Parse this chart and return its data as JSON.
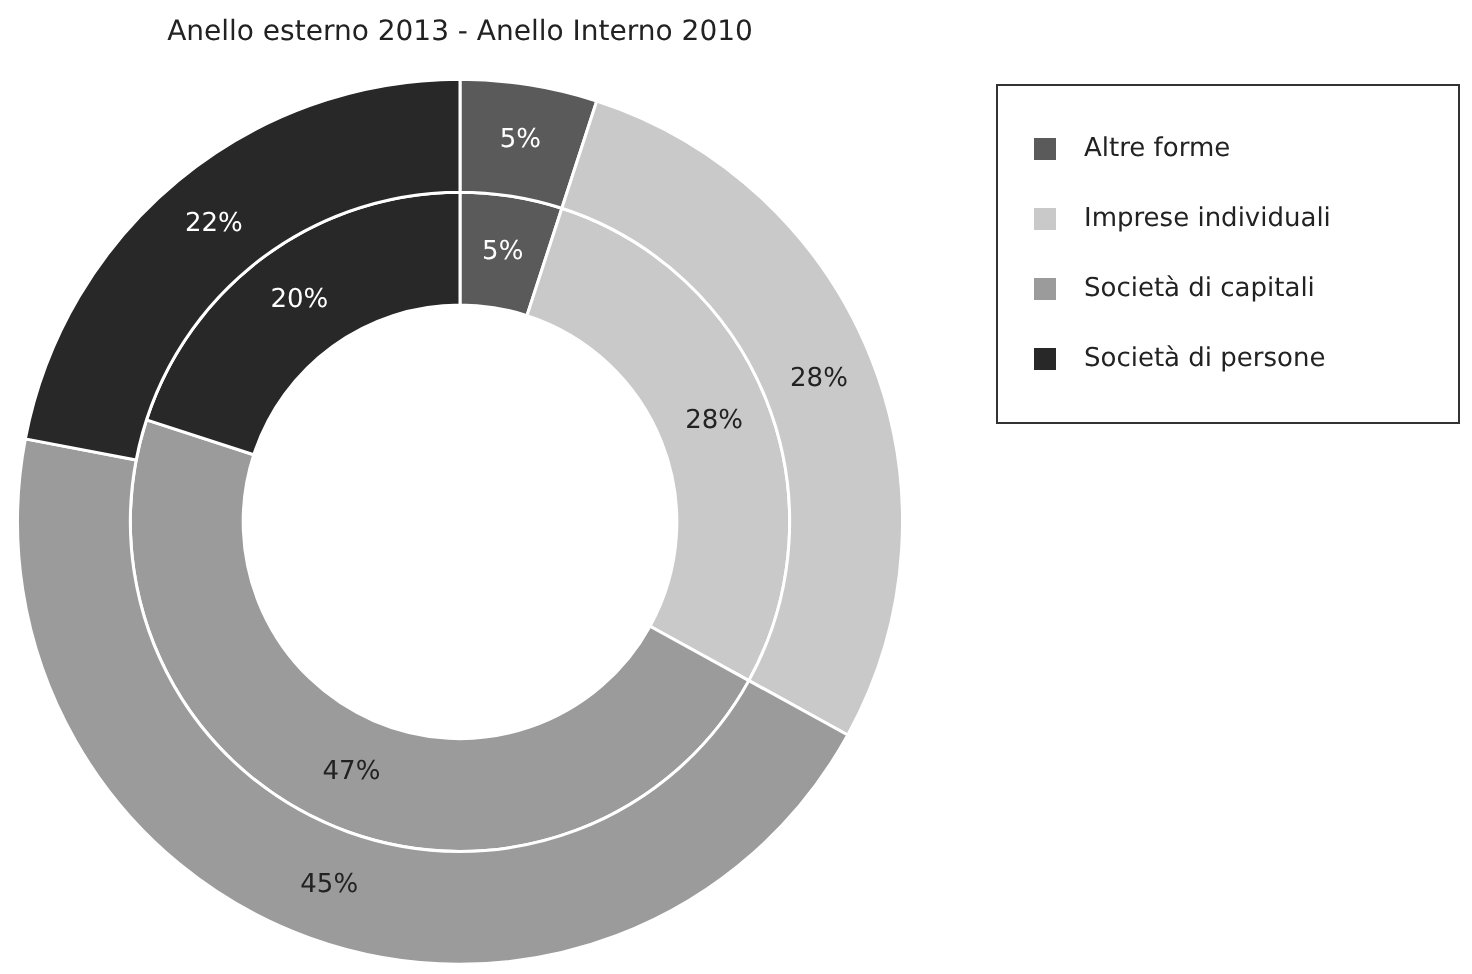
{
  "chart_data": {
    "type": "donut",
    "title": "Anello esterno 2013 - Anello Interno 2010",
    "categories": [
      "Altre forme",
      "Imprese individuali",
      "Società di capitali",
      "Società di persone"
    ],
    "colors": [
      "#5a5a5a",
      "#c9c9c9",
      "#9b9b9b",
      "#282828"
    ],
    "series": [
      {
        "values": [
          5,
          28,
          45,
          22
        ],
        "value_labels": [
          "5%",
          "28%",
          "45%",
          "22%"
        ]
      },
      {
        "values": [
          5,
          28,
          47,
          20
        ],
        "value_labels": [
          "5%",
          "28%",
          "47%",
          "20%"
        ]
      }
    ],
    "legend": "top right"
  }
}
